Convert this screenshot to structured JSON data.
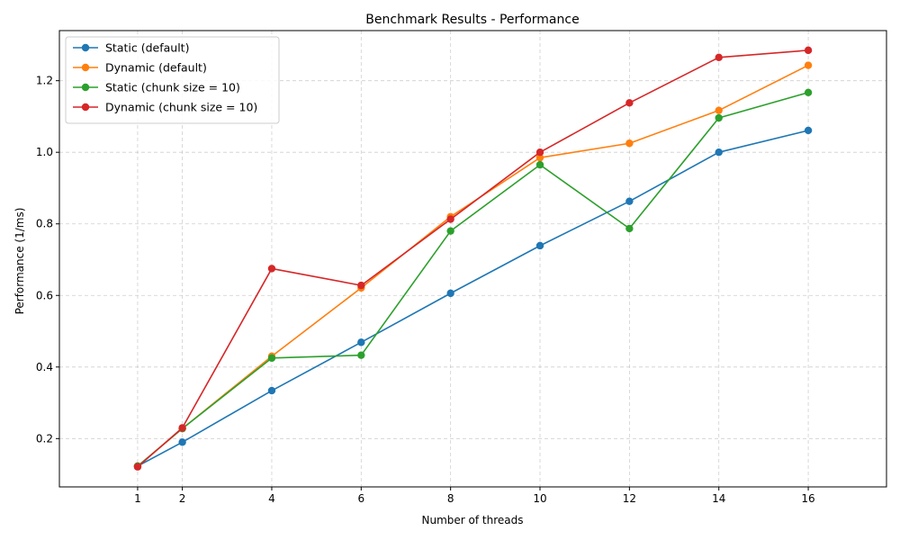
{
  "chart_data": {
    "type": "line",
    "title": "Benchmark Results - Performance",
    "xlabel": "Number of threads",
    "ylabel": "Performance (1/ms)",
    "x": [
      1,
      2,
      4,
      6,
      8,
      10,
      12,
      14,
      16
    ],
    "xticks": [
      1,
      2,
      4,
      6,
      8,
      10,
      12,
      14,
      16
    ],
    "yticks": [
      0.2,
      0.4,
      0.6,
      0.8,
      1.0,
      1.2
    ],
    "ytick_labels": [
      "0.2",
      "0.4",
      "0.6",
      "0.8",
      "1.0",
      "1.2"
    ],
    "xlim": [
      -0.75,
      17.75
    ],
    "ylim": [
      0.065,
      1.34
    ],
    "grid": true,
    "legend_position": "top-left",
    "series": [
      {
        "name": "Static (default)",
        "color": "#1f77b4",
        "values": [
          0.123,
          0.19,
          0.334,
          0.469,
          0.606,
          0.739,
          0.863,
          1.0,
          1.061
        ]
      },
      {
        "name": "Dynamic (default)",
        "color": "#ff7f0e",
        "values": [
          0.123,
          0.228,
          0.43,
          0.621,
          0.82,
          0.985,
          1.025,
          1.117,
          1.243
        ]
      },
      {
        "name": "Static (chunk size = 10)",
        "color": "#2ca02c",
        "values": [
          0.123,
          0.228,
          0.425,
          0.433,
          0.78,
          0.965,
          0.787,
          1.096,
          1.167
        ]
      },
      {
        "name": "Dynamic (chunk size = 10)",
        "color": "#d62728",
        "values": [
          0.121,
          0.23,
          0.675,
          0.628,
          0.813,
          1.0,
          1.138,
          1.265,
          1.285
        ]
      }
    ]
  }
}
